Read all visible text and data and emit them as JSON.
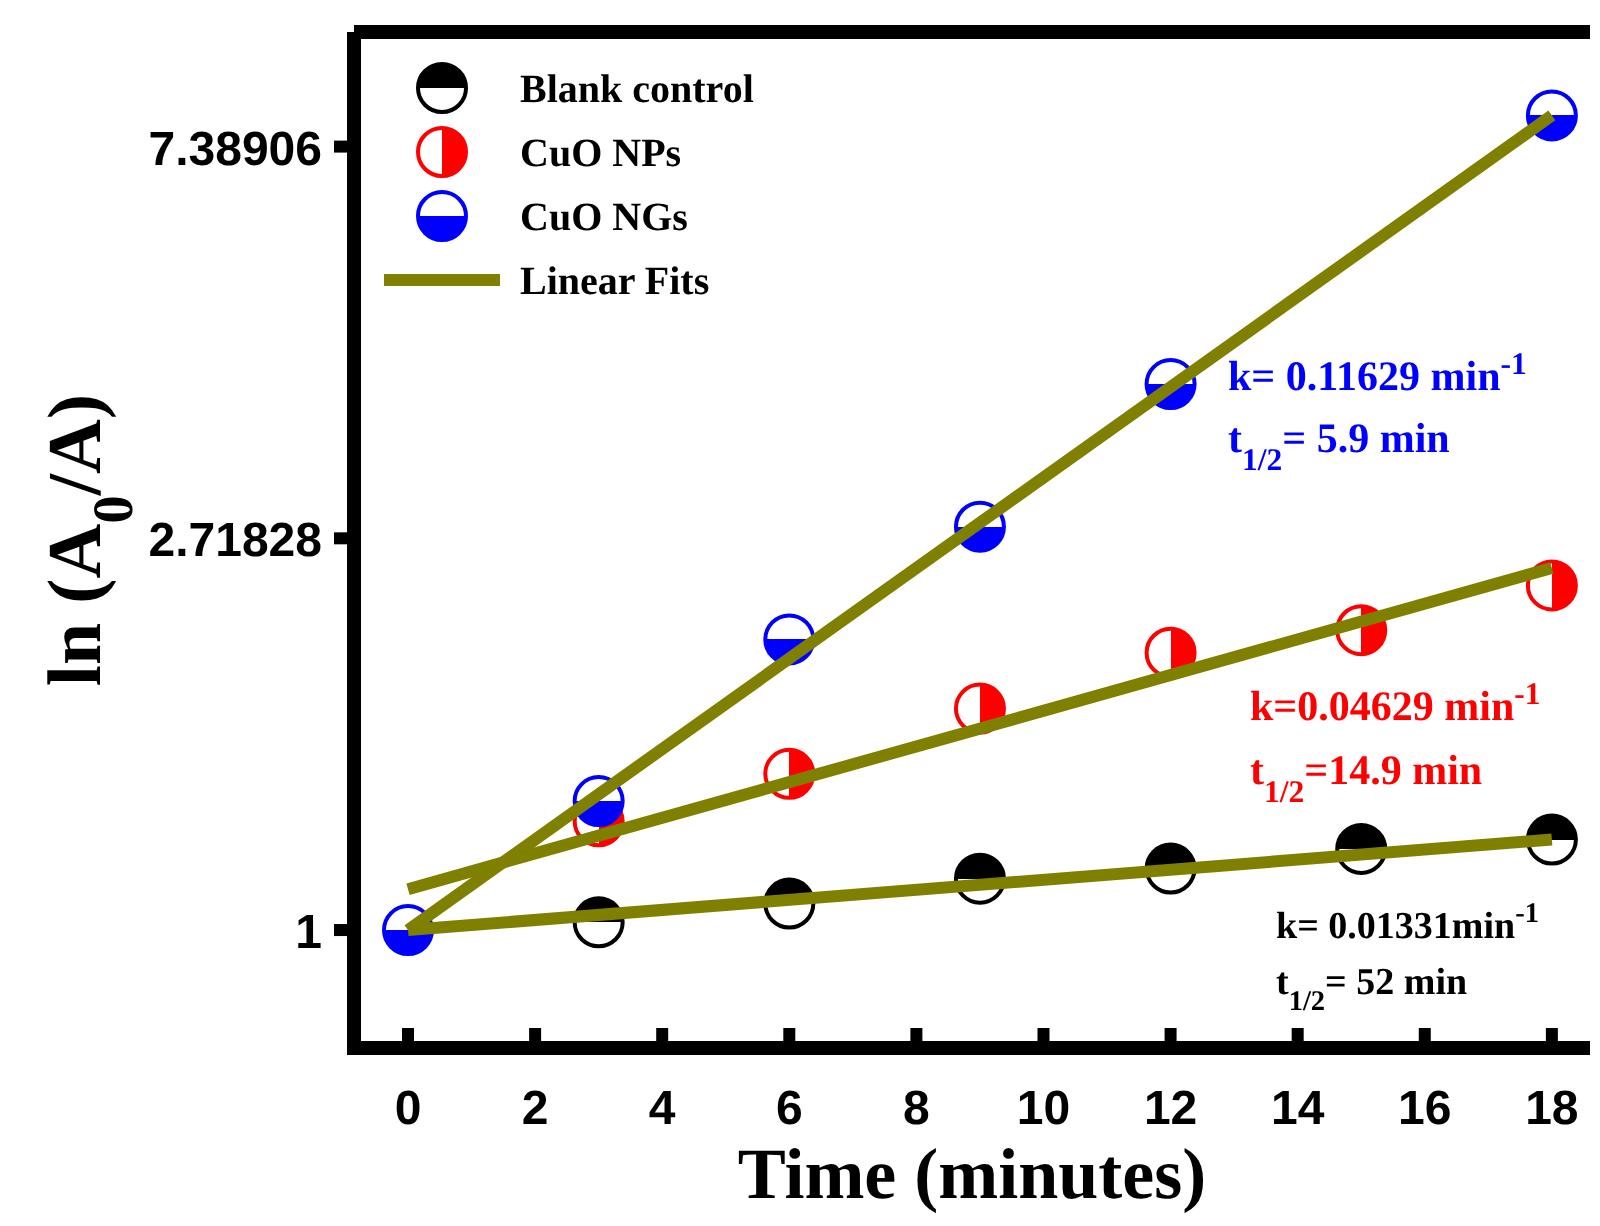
{
  "chart_data": {
    "type": "scatter",
    "xlabel": "Time (minutes)",
    "ylabel": "ln (A$_{0}$/A)",
    "log": "y",
    "xlim": [
      -0.85,
      18.6
    ],
    "ylim": [
      0.74,
      9.9
    ],
    "xticks": [
      0,
      2,
      4,
      6,
      8,
      10,
      12,
      14,
      16,
      18
    ],
    "yticks": [
      1,
      2.71828,
      7.38906
    ],
    "grid": false,
    "legend": "top left",
    "marker": "circle",
    "series": [
      {
        "name": "Blank control",
        "color": "#000000",
        "x": [
          3,
          6,
          9,
          12,
          15,
          18
        ],
        "values": [
          1.02,
          1.07,
          1.14,
          1.17,
          1.23,
          1.26
        ]
      },
      {
        "name": "CuO NPs",
        "color": "#ff0000",
        "x": [
          3,
          6,
          9,
          12,
          15,
          18
        ],
        "values": [
          1.32,
          1.49,
          1.76,
          2.03,
          2.15,
          2.41
        ]
      },
      {
        "name": "CuO NGs",
        "color": "#0000ff",
        "x": [
          0,
          3,
          6,
          9,
          12,
          18
        ],
        "values": [
          1,
          1.39,
          2.1,
          2.8,
          4.03,
          8.0
        ]
      },
      {
        "name": "Linear Fits",
        "type": "line",
        "marker": "none",
        "color": "#808000",
        "x": [
          0,
          18
        ],
        "values": [
          1,
          8.0
        ]
      },
      {
        "type": "line",
        "marker": "none",
        "color": "#808000",
        "x": [
          0,
          18
        ],
        "values": [
          1.11,
          2.52
        ]
      },
      {
        "type": "line",
        "marker": "none",
        "color": "#808000",
        "x": [
          0,
          18
        ],
        "values": [
          1,
          1.26
        ]
      }
    ],
    "annotations": [
      "k= 0.01331min$^{-1}$",
      "t$_{1/2}$= 52 min",
      "k=0.04629 min$^{-1}$",
      "t$_{1/2}$=14.9 min",
      "k= 0.11629 min$^{-1}$",
      "t$_{1/2}$= 5.9 min"
    ]
  }
}
